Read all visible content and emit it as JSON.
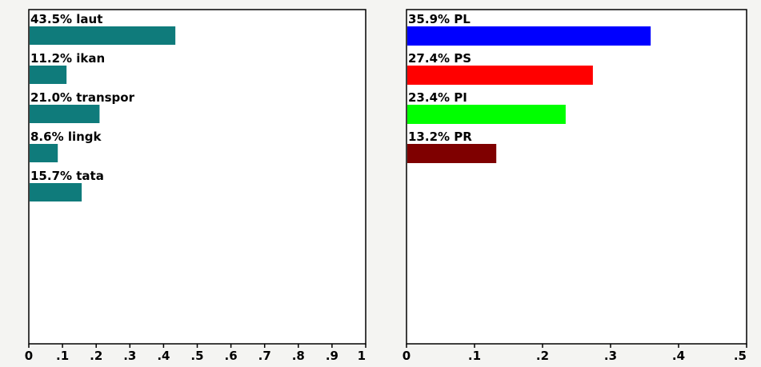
{
  "chart_data": [
    {
      "type": "bar",
      "orientation": "horizontal",
      "categories": [
        "laut",
        "ikan",
        "transpor",
        "lingk",
        "tata"
      ],
      "values": [
        0.435,
        0.112,
        0.21,
        0.086,
        0.157
      ],
      "labels": [
        "43.5% laut",
        "11.2% ikan",
        "21.0% transpor",
        "8.6% lingk",
        "15.7% tata"
      ],
      "colors": [
        "#0f7b7b",
        "#0f7b7b",
        "#0f7b7b",
        "#0f7b7b",
        "#0f7b7b"
      ],
      "xlim": [
        0,
        1
      ],
      "xticks": [
        0,
        0.1,
        0.2,
        0.3,
        0.4,
        0.5,
        0.6,
        0.7,
        0.8,
        0.9,
        1
      ],
      "xtick_labels": [
        "0",
        ".1",
        ".2",
        ".3",
        ".4",
        ".5",
        ".6",
        ".7",
        ".8",
        ".9",
        "1"
      ],
      "grid": false
    },
    {
      "type": "bar",
      "orientation": "horizontal",
      "categories": [
        "PL",
        "PS",
        "PI",
        "PR"
      ],
      "values": [
        0.359,
        0.274,
        0.234,
        0.132
      ],
      "labels": [
        "35.9% PL",
        "27.4% PS",
        "23.4% PI",
        "13.2% PR"
      ],
      "colors": [
        "#0000ff",
        "#ff0000",
        "#00ff00",
        "#7f0000"
      ],
      "xlim": [
        0,
        0.5
      ],
      "xticks": [
        0,
        0.1,
        0.2,
        0.3,
        0.4,
        0.5
      ],
      "xtick_labels": [
        "0",
        ".1",
        ".2",
        ".3",
        ".4",
        ".5"
      ],
      "grid": false
    }
  ]
}
